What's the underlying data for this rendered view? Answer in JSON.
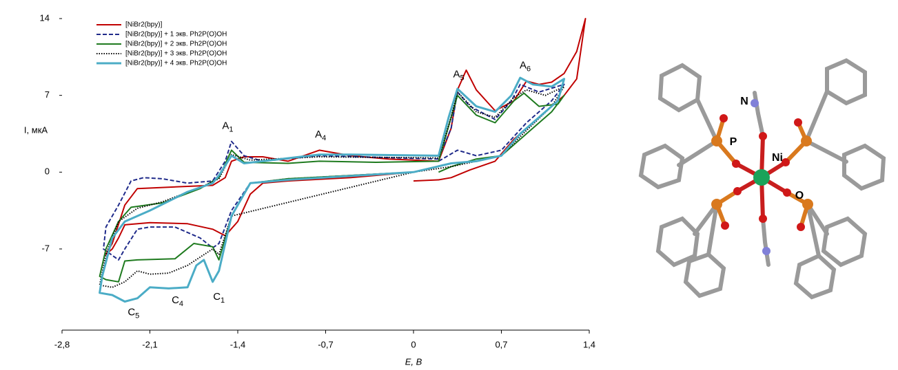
{
  "chart_data": {
    "type": "line",
    "x_label": "E, В",
    "y_label": "I, мкА",
    "xlim": [
      -2.8,
      1.4
    ],
    "ylim": [
      -14.4,
      14
    ],
    "xticks": [
      {
        "value": -2.8,
        "label": "-2,8"
      },
      {
        "value": -2.1,
        "label": "-2,1"
      },
      {
        "value": -1.4,
        "label": "-1,4"
      },
      {
        "value": -0.7,
        "label": "-0,7"
      },
      0,
      {
        "value": 0.7,
        "label": "0,7"
      },
      {
        "value": 1.4,
        "label": "1,4"
      }
    ],
    "yticks": [
      14,
      7,
      0,
      -7
    ],
    "legend": "top-left",
    "series": [
      {
        "name": "[NiBr2(bpy)]",
        "color": "#c00000",
        "dash": "solid",
        "x": [
          0,
          -0.5,
          -1.0,
          -1.2,
          -1.3,
          -1.4,
          -1.5,
          -1.6,
          -1.8,
          -2.1,
          -2.3,
          -2.35,
          -2.4,
          -2.45,
          -2.4,
          -2.3,
          -2.2,
          -2.0,
          -1.8,
          -1.6,
          -1.5,
          -1.45,
          -1.35,
          -1.2,
          -1.0,
          -0.75,
          -0.5,
          -0.2,
          0.2,
          0.3,
          0.35,
          0.42,
          0.5,
          0.65,
          0.8,
          0.9,
          1.0,
          1.1,
          1.2,
          1.3,
          1.37,
          1.3,
          1.2,
          1.0,
          0.8,
          0.65,
          0.45,
          0.3,
          0.2,
          0
        ],
        "y": [
          0,
          -0.5,
          -0.8,
          -1.0,
          -2.0,
          -4.5,
          -5.8,
          -5.2,
          -4.7,
          -4.6,
          -4.8,
          -6.0,
          -7.0,
          -7.5,
          -6.5,
          -3.0,
          -1.5,
          -1.4,
          -1.3,
          -1.2,
          -0.5,
          1.0,
          1.4,
          1.4,
          1.0,
          2.0,
          1.5,
          1.2,
          1.0,
          4.0,
          7.5,
          9.3,
          7.5,
          5.6,
          6.5,
          8.3,
          8.0,
          8.2,
          9.0,
          11.0,
          14.0,
          8.5,
          7.0,
          5.0,
          3.0,
          1.0,
          0.2,
          -0.5,
          -0.7,
          -0.8
        ]
      },
      {
        "name": "[NiBr2(bpy)] + 1 экв. Ph2P(O)OH",
        "color": "#1f2a8a",
        "dash": "dashed",
        "x": [
          0,
          -1.0,
          -1.3,
          -1.45,
          -1.55,
          -1.6,
          -1.7,
          -1.9,
          -2.1,
          -2.2,
          -2.3,
          -2.35,
          -2.47,
          -2.45,
          -2.35,
          -2.25,
          -2.15,
          -2.0,
          -1.8,
          -1.6,
          -1.5,
          -1.45,
          -1.35,
          -1.2,
          -0.75,
          0.2,
          0.3,
          0.35,
          0.45,
          0.65,
          0.78,
          0.85,
          1.0,
          1.2,
          1.1,
          0.9,
          0.7,
          0.5,
          0.35,
          0.2
        ],
        "y": [
          0,
          -0.6,
          -1.0,
          -3.5,
          -6.5,
          -6.9,
          -6.0,
          -5.0,
          -5.0,
          -5.2,
          -7.0,
          -8.0,
          -7.0,
          -5.0,
          -3.0,
          -0.8,
          -0.5,
          -0.6,
          -1.0,
          -0.8,
          1.0,
          2.8,
          1.5,
          1.0,
          1.5,
          1.2,
          4.0,
          7.3,
          6.0,
          4.8,
          6.5,
          8.0,
          7.3,
          8.0,
          6.5,
          4.5,
          2.0,
          1.5,
          2.0,
          1.0
        ]
      },
      {
        "name": "[NiBr2(bpy)] + 2 экв. Ph2P(O)OH",
        "color": "#1e7a1e",
        "dash": "solid",
        "x": [
          0,
          -1.0,
          -1.3,
          -1.45,
          -1.55,
          -1.6,
          -1.75,
          -1.9,
          -2.2,
          -2.3,
          -2.35,
          -2.45,
          -2.5,
          -2.45,
          -2.35,
          -2.25,
          -2.0,
          -1.7,
          -1.55,
          -1.45,
          -1.35,
          -1.0,
          -0.75,
          -0.3,
          0.2,
          0.3,
          0.35,
          0.5,
          0.65,
          0.8,
          0.88,
          1.0,
          1.15,
          1.2,
          1.1,
          0.9,
          0.7,
          0.5,
          0.3,
          0.2
        ],
        "y": [
          0,
          -0.6,
          -1.0,
          -4.0,
          -8.0,
          -6.8,
          -6.5,
          -7.9,
          -8.0,
          -8.1,
          -10.0,
          -9.8,
          -9.5,
          -7.0,
          -4.5,
          -3.2,
          -2.8,
          -1.5,
          -0.5,
          2.0,
          0.9,
          0.8,
          1.0,
          0.9,
          1.0,
          5.0,
          7.0,
          5.2,
          4.5,
          6.5,
          7.2,
          6.0,
          6.2,
          7.0,
          5.5,
          3.5,
          1.5,
          1.2,
          0.5,
          0.0
        ]
      },
      {
        "name": "[NiBr2(bpy)] + 3 экв. Ph2P(O)OH",
        "color": "#000000",
        "dash": "dotted",
        "x": [
          0,
          -1.45,
          -1.55,
          -1.6,
          -1.8,
          -1.95,
          -2.1,
          -2.2,
          -2.3,
          -2.4,
          -2.5,
          -2.45,
          -2.35,
          -2.2,
          -2.0,
          -1.7,
          -1.55,
          -1.45,
          -1.3,
          -0.75,
          0.2,
          0.3,
          0.35,
          0.5,
          0.65,
          0.8,
          0.9,
          1.05,
          1.2,
          1.1,
          0.9,
          0.7,
          0.5,
          0.3,
          0
        ],
        "y": [
          0,
          -4.0,
          -7.5,
          -7.0,
          -8.5,
          -9.2,
          -9.3,
          -9.0,
          -10.0,
          -10.5,
          -10.3,
          -7.5,
          -4.5,
          -3.3,
          -2.7,
          -1.4,
          -0.6,
          1.6,
          1.1,
          1.4,
          1.3,
          5.0,
          7.3,
          5.5,
          5.0,
          6.8,
          7.5,
          7.0,
          7.8,
          6.0,
          3.8,
          1.5,
          1.0,
          0.5,
          0
        ]
      },
      {
        "name": "[NiBr2(bpy)] + 4 экв. Ph2P(O)OH",
        "color": "#4bacc6",
        "dash": "solid",
        "x": [
          0,
          -1.0,
          -1.3,
          -1.45,
          -1.55,
          -1.6,
          -1.67,
          -1.73,
          -1.8,
          -1.95,
          -2.1,
          -2.2,
          -2.3,
          -2.4,
          -2.5,
          -2.48,
          -2.4,
          -2.3,
          -2.1,
          -1.8,
          -1.6,
          -1.55,
          -1.45,
          -1.35,
          -0.75,
          -0.5,
          0.2,
          0.28,
          0.35,
          0.5,
          0.65,
          0.78,
          0.85,
          0.95,
          1.1,
          1.2,
          1.15,
          1.0,
          0.85,
          0.7,
          0.5,
          0.3,
          0
        ],
        "y": [
          0,
          -0.7,
          -1.0,
          -4.0,
          -9.0,
          -10.0,
          -8.0,
          -8.5,
          -10.5,
          -10.6,
          -10.5,
          -11.5,
          -11.8,
          -11.2,
          -11.0,
          -9.5,
          -6.0,
          -4.5,
          -3.5,
          -1.8,
          -1.0,
          -0.3,
          1.5,
          0.8,
          1.6,
          1.6,
          1.5,
          5.0,
          7.6,
          6.0,
          5.5,
          7.0,
          8.6,
          8.0,
          7.8,
          8.5,
          6.5,
          5.0,
          3.5,
          1.5,
          1.0,
          0.8,
          0
        ]
      }
    ],
    "annotations": [
      {
        "text": "A",
        "sub": "1",
        "x": -1.48,
        "y": 4.2
      },
      {
        "text": "A",
        "sub": "4",
        "x": -0.74,
        "y": 3.4
      },
      {
        "text": "A",
        "sub": "5",
        "x": 0.36,
        "y": 8.9
      },
      {
        "text": "A",
        "sub": "6",
        "x": 0.89,
        "y": 9.7
      },
      {
        "text": "C",
        "sub": "1",
        "x": -1.55,
        "y": -11.4
      },
      {
        "text": "C",
        "sub": "4",
        "x": -1.88,
        "y": -11.7
      },
      {
        "text": "C",
        "sub": "5",
        "x": -2.23,
        "y": -12.8
      }
    ]
  },
  "molecule": {
    "labels": [
      "N",
      "P",
      "Ni",
      "O"
    ]
  }
}
